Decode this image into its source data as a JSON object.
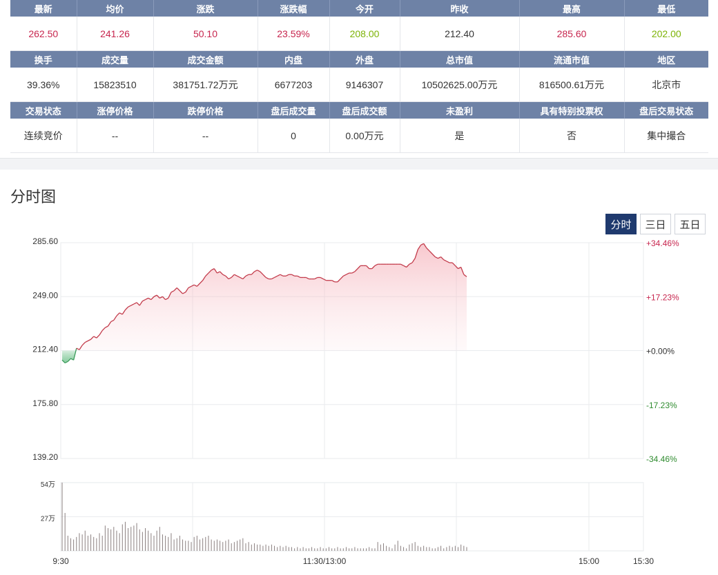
{
  "quote_table": {
    "rows": [
      {
        "headers": [
          "最新",
          "均价",
          "涨跌",
          "涨跌幅",
          "今开",
          "昨收",
          "最高",
          "最低"
        ],
        "values": [
          {
            "text": "262.50",
            "tone": "up"
          },
          {
            "text": "241.26",
            "tone": "up"
          },
          {
            "text": "50.10",
            "tone": "up"
          },
          {
            "text": "23.59%",
            "tone": "up"
          },
          {
            "text": "208.00",
            "tone": "down"
          },
          {
            "text": "212.40",
            "tone": "flat"
          },
          {
            "text": "285.60",
            "tone": "up"
          },
          {
            "text": "202.00",
            "tone": "down"
          }
        ]
      },
      {
        "headers": [
          "换手",
          "成交量",
          "成交金额",
          "内盘",
          "外盘",
          "总市值",
          "流通市值",
          "地区"
        ],
        "values": [
          {
            "text": "39.36%",
            "tone": "flat"
          },
          {
            "text": "15823510",
            "tone": "flat"
          },
          {
            "text": "381751.72万元",
            "tone": "flat"
          },
          {
            "text": "6677203",
            "tone": "flat"
          },
          {
            "text": "9146307",
            "tone": "flat"
          },
          {
            "text": "10502625.00万元",
            "tone": "flat"
          },
          {
            "text": "816500.61万元",
            "tone": "flat"
          },
          {
            "text": "北京市",
            "tone": "flat"
          }
        ]
      },
      {
        "headers": [
          "交易状态",
          "涨停价格",
          "跌停价格",
          "盘后成交量",
          "盘后成交额",
          "未盈利",
          "具有特别投票权",
          "盘后交易状态"
        ],
        "values": [
          {
            "text": "连续竞价",
            "tone": "flat"
          },
          {
            "text": "--",
            "tone": "flat"
          },
          {
            "text": "--",
            "tone": "flat"
          },
          {
            "text": "0",
            "tone": "flat"
          },
          {
            "text": "0.00万元",
            "tone": "flat"
          },
          {
            "text": "是",
            "tone": "flat"
          },
          {
            "text": "否",
            "tone": "flat"
          },
          {
            "text": "集中撮合",
            "tone": "flat"
          }
        ]
      }
    ]
  },
  "section_title": "分时图",
  "tabs": [
    {
      "label": "分时",
      "active": true
    },
    {
      "label": "三日",
      "active": false
    },
    {
      "label": "五日",
      "active": false
    }
  ],
  "colors": {
    "up": "#c7254e",
    "down": "#7cb305",
    "line": "#c23a4a",
    "header_bg": "#6e82a6"
  },
  "chart_data": {
    "type": "line",
    "price_axis": {
      "ticks": [
        "285.60",
        "249.00",
        "212.40",
        "175.80",
        "139.20"
      ],
      "min": 139.2,
      "max": 285.6,
      "prev_close": 212.4
    },
    "pct_axis": {
      "ticks": [
        "+34.46%",
        "+17.23%",
        "+0.00%",
        "-17.23%",
        "-34.46%"
      ]
    },
    "x_ticks": [
      "9:30",
      "11:30/13:00",
      "15:00",
      "15:30"
    ],
    "volume_axis": {
      "ticks": [
        "54万",
        "27万"
      ],
      "max": 54
    },
    "price_series": [
      206,
      204,
      205,
      207,
      206,
      214,
      213,
      216,
      218,
      219,
      220,
      222,
      221,
      223,
      226,
      228,
      229,
      232,
      233,
      236,
      238,
      237,
      240,
      242,
      243,
      244,
      245,
      243,
      246,
      247,
      248,
      247,
      249,
      250,
      248,
      249,
      247,
      248,
      252,
      253,
      255,
      253,
      251,
      252,
      255,
      256,
      257,
      256,
      258,
      260,
      263,
      265,
      267,
      268,
      265,
      266,
      264,
      263,
      261,
      262,
      264,
      263,
      262,
      261,
      263,
      264,
      264,
      266,
      267,
      266,
      264,
      262,
      261,
      261,
      262,
      263,
      264,
      263,
      263,
      264,
      264,
      263,
      263,
      262,
      262,
      262,
      261,
      261,
      261,
      262,
      262,
      261,
      260,
      260,
      260,
      259,
      259,
      261,
      263,
      264,
      265,
      265,
      266,
      268,
      270,
      270,
      270,
      268,
      268,
      270,
      271,
      271,
      271,
      271,
      271,
      271,
      271,
      271,
      271,
      270,
      269,
      271,
      272,
      275,
      281,
      284,
      285,
      282,
      280,
      278,
      276,
      275,
      276,
      274,
      273,
      272,
      272,
      270,
      268,
      269,
      264,
      262.5
    ],
    "volume_series": [
      54,
      30,
      12,
      10,
      9,
      11,
      14,
      13,
      16,
      12,
      13,
      11,
      10,
      14,
      12,
      20,
      18,
      17,
      19,
      16,
      14,
      21,
      23,
      18,
      19,
      20,
      22,
      17,
      15,
      18,
      16,
      14,
      12,
      16,
      19,
      13,
      12,
      11,
      14,
      9,
      10,
      12,
      9,
      8,
      8,
      7,
      11,
      12,
      9,
      10,
      11,
      12,
      9,
      8,
      9,
      8,
      7,
      8,
      9,
      6,
      7,
      8,
      9,
      10,
      6,
      7,
      5,
      6,
      5,
      5,
      4,
      5,
      4,
      5,
      4,
      3,
      4,
      3,
      4,
      3,
      3,
      2,
      3,
      2,
      3,
      2,
      2,
      3,
      2,
      2,
      3,
      2,
      2,
      3,
      2,
      2,
      3,
      2,
      2,
      3,
      2,
      2,
      3,
      2,
      2,
      2,
      2,
      3,
      2,
      2,
      7,
      5,
      6,
      4,
      3,
      2,
      5,
      8,
      4,
      3,
      2,
      5,
      6,
      7,
      4,
      3,
      4,
      3,
      3,
      2,
      2,
      3,
      4,
      2,
      3,
      4,
      3,
      4,
      3,
      5,
      4,
      3
    ]
  }
}
